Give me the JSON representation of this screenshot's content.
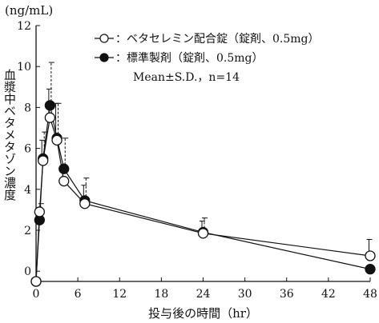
{
  "chart_data": {
    "type": "line",
    "unit_label": "(ng/mL)",
    "xlabel": "投与後の時間（hr）",
    "ylabel": "血漿中ベタメタゾン濃度",
    "xlim": [
      0,
      48
    ],
    "ylim": [
      -0.5,
      12
    ],
    "xticks": [
      0,
      6,
      12,
      18,
      24,
      30,
      36,
      42,
      48
    ],
    "yticks": [
      0,
      2,
      4,
      6,
      8,
      10,
      12
    ],
    "x": [
      0,
      0.5,
      1,
      2,
      3,
      4,
      7,
      24,
      48
    ],
    "series": [
      {
        "name": "：ベタセレミン配合錠（錠剤、0.5mg）",
        "marker": "open-circle",
        "values": [
          -0.5,
          2.9,
          5.4,
          7.5,
          6.4,
          4.4,
          3.3,
          1.85,
          0.75
        ],
        "sd": [
          0,
          0,
          1.0,
          1.4,
          1.8,
          0.6,
          0.9,
          0.6,
          0.8
        ],
        "error_style": "solid"
      },
      {
        "name": "：標準製剤（錠剤、0.5mg）",
        "marker": "filled-circle",
        "values": [
          -0.5,
          2.5,
          5.5,
          8.1,
          6.5,
          5.0,
          3.45,
          1.9,
          0.1
        ],
        "sd": [
          0,
          0.8,
          1.3,
          2.1,
          1.7,
          1.5,
          1.1,
          0.7,
          0
        ],
        "error_style": "dashed"
      }
    ],
    "annotation": "Mean±S.D.，n=14",
    "legend_position": "top-right",
    "grid": false
  }
}
